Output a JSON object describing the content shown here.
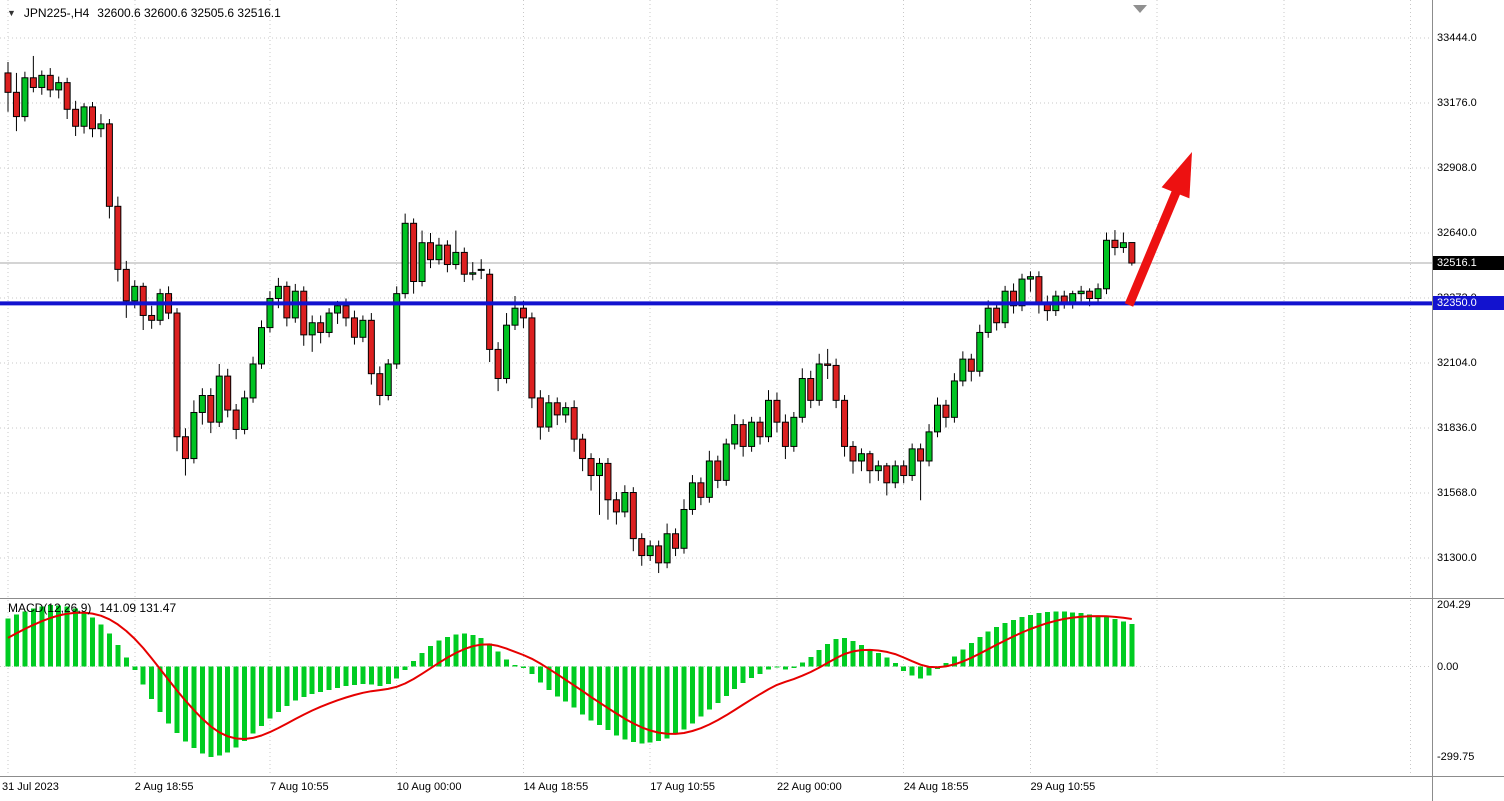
{
  "header": {
    "symbol_period": "JPN225-,H4",
    "ohlc_text": "32600.6 32600.6 32505.6 32516.1"
  },
  "price_axis": {
    "tick_labels": [
      "33444.0",
      "33176.0",
      "32908.0",
      "32640.0",
      "32372.0",
      "32104.0",
      "31836.0",
      "31568.0",
      "31300.0"
    ],
    "current_price_label": "32516.1",
    "hline_label": "32350.0"
  },
  "macd_panel": {
    "label": "MACD(12,26,9)",
    "values_text": "141.09 131.47",
    "tick_labels": [
      "204.29",
      "0.00",
      "-299.75"
    ]
  },
  "time_axis": {
    "labels": [
      "31 Jul 2023",
      "2 Aug 18:55",
      "7 Aug 10:55",
      "10 Aug 00:00",
      "14 Aug 18:55",
      "17 Aug 10:55",
      "22 Aug 00:00",
      "24 Aug 18:55",
      "29 Aug 10:55"
    ],
    "candle_indices": [
      0,
      15,
      31,
      46,
      61,
      76,
      91,
      106,
      121
    ]
  },
  "colors": {
    "bull": "#00C322",
    "bear": "#DC2020",
    "wick": "#000000",
    "macd_hist": "#00CC22",
    "macd_signal": "#E60000",
    "hline": "#1212CF",
    "arrow": "#ED1111",
    "grid": "#C8C8C8",
    "separator": "#8C8C8C",
    "current_line": "#A8A8A8",
    "shift_marker": "#909090"
  },
  "chart_data": {
    "type": "candlestick",
    "symbol": "JPN225-",
    "timeframe": "H4",
    "title": "JPN225-,H4 32600.6 32600.6 32505.6 32516.1",
    "price_range_visible": [
      31150,
      33500
    ],
    "horizontal_line": 32350.0,
    "current_price": 32516.1,
    "candles": [
      [
        33300,
        33345,
        33140,
        33220
      ],
      [
        33220,
        33300,
        33060,
        33120
      ],
      [
        33120,
        33305,
        33100,
        33280
      ],
      [
        33280,
        33370,
        33220,
        33240
      ],
      [
        33240,
        33310,
        33210,
        33290
      ],
      [
        33290,
        33320,
        33200,
        33230
      ],
      [
        33230,
        33285,
        33195,
        33260
      ],
      [
        33260,
        33280,
        33110,
        33150
      ],
      [
        33150,
        33185,
        33040,
        33080
      ],
      [
        33080,
        33175,
        33050,
        33160
      ],
      [
        33160,
        33180,
        33035,
        33070
      ],
      [
        33070,
        33130,
        33035,
        33090
      ],
      [
        33090,
        33110,
        32700,
        32750
      ],
      [
        32750,
        32790,
        32440,
        32490
      ],
      [
        32490,
        32525,
        32290,
        32360
      ],
      [
        32360,
        32445,
        32330,
        32420
      ],
      [
        32420,
        32435,
        32240,
        32300
      ],
      [
        32300,
        32340,
        32245,
        32280
      ],
      [
        32280,
        32410,
        32260,
        32390
      ],
      [
        32390,
        32420,
        32285,
        32310
      ],
      [
        32310,
        32330,
        31740,
        31800
      ],
      [
        31800,
        31835,
        31640,
        31710
      ],
      [
        31710,
        31950,
        31690,
        31900
      ],
      [
        31900,
        32000,
        31850,
        31970
      ],
      [
        31970,
        32000,
        31815,
        31860
      ],
      [
        31860,
        32100,
        31840,
        32050
      ],
      [
        32050,
        32080,
        31880,
        31910
      ],
      [
        31910,
        31935,
        31790,
        31830
      ],
      [
        31830,
        31990,
        31810,
        31960
      ],
      [
        31960,
        32130,
        31940,
        32100
      ],
      [
        32100,
        32280,
        32080,
        32250
      ],
      [
        32250,
        32400,
        32230,
        32370
      ],
      [
        32370,
        32455,
        32330,
        32420
      ],
      [
        32420,
        32440,
        32255,
        32290
      ],
      [
        32290,
        32430,
        32270,
        32400
      ],
      [
        32400,
        32420,
        32175,
        32220
      ],
      [
        32220,
        32300,
        32150,
        32270
      ],
      [
        32270,
        32300,
        32185,
        32230
      ],
      [
        32230,
        32330,
        32210,
        32310
      ],
      [
        32310,
        32360,
        32265,
        32340
      ],
      [
        32340,
        32370,
        32255,
        32290
      ],
      [
        32290,
        32320,
        32180,
        32210
      ],
      [
        32210,
        32300,
        32190,
        32280
      ],
      [
        32280,
        32310,
        32015,
        32060
      ],
      [
        32060,
        32090,
        31930,
        31970
      ],
      [
        31970,
        32120,
        31950,
        32100
      ],
      [
        32100,
        32420,
        32080,
        32390
      ],
      [
        32390,
        32720,
        32370,
        32680
      ],
      [
        32680,
        32700,
        32390,
        32440
      ],
      [
        32440,
        32650,
        32420,
        32600
      ],
      [
        32600,
        32640,
        32495,
        32530
      ],
      [
        32530,
        32620,
        32510,
        32590
      ],
      [
        32590,
        32610,
        32478,
        32510
      ],
      [
        32510,
        32650,
        32490,
        32560
      ],
      [
        32560,
        32580,
        32438,
        32470
      ],
      [
        32470,
        32520,
        32445,
        32476
      ],
      [
        32490,
        32532,
        32450,
        32486
      ],
      [
        32470,
        32492,
        32108,
        32160
      ],
      [
        32160,
        32190,
        31988,
        32040
      ],
      [
        32040,
        32310,
        32020,
        32260
      ],
      [
        32260,
        32380,
        32240,
        32330
      ],
      [
        32330,
        32360,
        32248,
        32290
      ],
      [
        32290,
        32312,
        31918,
        31960
      ],
      [
        31960,
        31992,
        31788,
        31840
      ],
      [
        31840,
        31972,
        31820,
        31940
      ],
      [
        31940,
        31962,
        31848,
        31890
      ],
      [
        31890,
        31942,
        31858,
        31920
      ],
      [
        31920,
        31950,
        31738,
        31790
      ],
      [
        31790,
        31812,
        31658,
        31710
      ],
      [
        31710,
        31732,
        31578,
        31640
      ],
      [
        31640,
        31712,
        31478,
        31690
      ],
      [
        31690,
        31712,
        31458,
        31540
      ],
      [
        31540,
        31572,
        31438,
        31490
      ],
      [
        31490,
        31600,
        31468,
        31570
      ],
      [
        31570,
        31592,
        31328,
        31380
      ],
      [
        31380,
        31402,
        31268,
        31310
      ],
      [
        31310,
        31372,
        31288,
        31350
      ],
      [
        31350,
        31372,
        31238,
        31280
      ],
      [
        31280,
        31442,
        31258,
        31400
      ],
      [
        31400,
        31422,
        31308,
        31340
      ],
      [
        31340,
        31542,
        31318,
        31500
      ],
      [
        31500,
        31642,
        31478,
        31610
      ],
      [
        31610,
        31632,
        31518,
        31550
      ],
      [
        31550,
        31742,
        31528,
        31700
      ],
      [
        31700,
        31722,
        31588,
        31620
      ],
      [
        31620,
        31792,
        31598,
        31770
      ],
      [
        31770,
        31892,
        31748,
        31850
      ],
      [
        31850,
        31872,
        31718,
        31760
      ],
      [
        31760,
        31882,
        31738,
        31860
      ],
      [
        31860,
        31882,
        31768,
        31800
      ],
      [
        31800,
        31992,
        31778,
        31950
      ],
      [
        31950,
        31982,
        31818,
        31860
      ],
      [
        31860,
        31892,
        31708,
        31760
      ],
      [
        31760,
        31902,
        31738,
        31880
      ],
      [
        31880,
        32082,
        31858,
        32040
      ],
      [
        32040,
        32072,
        31918,
        31950
      ],
      [
        31950,
        32142,
        31928,
        32100
      ],
      [
        32100,
        32162,
        32038,
        32094
      ],
      [
        32094,
        32122,
        31918,
        31950
      ],
      [
        31950,
        31972,
        31718,
        31760
      ],
      [
        31760,
        31782,
        31648,
        31700
      ],
      [
        31700,
        31752,
        31658,
        31730
      ],
      [
        31730,
        31742,
        31608,
        31660
      ],
      [
        31660,
        31702,
        31618,
        31680
      ],
      [
        31680,
        31692,
        31558,
        31610
      ],
      [
        31610,
        31702,
        31588,
        31680
      ],
      [
        31680,
        31702,
        31608,
        31640
      ],
      [
        31640,
        31772,
        31618,
        31750
      ],
      [
        31750,
        31772,
        31538,
        31700
      ],
      [
        31700,
        31852,
        31678,
        31820
      ],
      [
        31820,
        31962,
        31798,
        31930
      ],
      [
        31930,
        31952,
        31838,
        31880
      ],
      [
        31880,
        32062,
        31858,
        32030
      ],
      [
        32030,
        32152,
        32008,
        32120
      ],
      [
        32120,
        32142,
        32028,
        32070
      ],
      [
        32070,
        32262,
        32048,
        32230
      ],
      [
        32230,
        32362,
        32208,
        32330
      ],
      [
        32330,
        32352,
        32238,
        32270
      ],
      [
        32270,
        32422,
        32248,
        32400
      ],
      [
        32400,
        32432,
        32308,
        32340
      ],
      [
        32340,
        32472,
        32318,
        32450
      ],
      [
        32450,
        32482,
        32398,
        32460
      ],
      [
        32460,
        32482,
        32308,
        32350
      ],
      [
        32350,
        32382,
        32278,
        32320
      ],
      [
        32320,
        32402,
        32298,
        32380
      ],
      [
        32380,
        32402,
        32328,
        32350
      ],
      [
        32350,
        32402,
        32328,
        32390
      ],
      [
        32390,
        32422,
        32358,
        32400
      ],
      [
        32400,
        32412,
        32338,
        32370
      ],
      [
        32370,
        32432,
        32348,
        32410
      ],
      [
        32410,
        32642,
        32388,
        32610
      ],
      [
        32610,
        32652,
        32548,
        32580
      ],
      [
        32580,
        32642,
        32558,
        32600
      ],
      [
        32600.6,
        32600.6,
        32505.6,
        32516.1
      ]
    ],
    "macd": {
      "name": "MACD",
      "params": [
        12,
        26,
        9
      ],
      "last_macd": 141.09,
      "last_signal": 131.47,
      "range": [
        -299.75,
        204.29
      ],
      "histogram": [
        160,
        172,
        183,
        192,
        199,
        204.29,
        203,
        199,
        192,
        180,
        163,
        140,
        110,
        72,
        30,
        -12,
        -60,
        -108,
        -150,
        -188,
        -220,
        -248,
        -270,
        -288,
        -299.75,
        -295,
        -284,
        -268,
        -246,
        -222,
        -197,
        -172,
        -150,
        -130,
        -113,
        -100,
        -91,
        -84,
        -78,
        -71,
        -65,
        -61,
        -58,
        -60,
        -64,
        -57,
        -40,
        -12,
        18,
        45,
        68,
        86,
        98,
        107,
        110,
        105,
        94,
        76,
        50,
        24,
        6,
        -4,
        -24,
        -52,
        -78,
        -99,
        -116,
        -136,
        -158,
        -178,
        -194,
        -210,
        -228,
        -242,
        -250,
        -255,
        -252,
        -247,
        -238,
        -225,
        -208,
        -188,
        -166,
        -143,
        -120,
        -97,
        -74,
        -55,
        -38,
        -24,
        -10,
        -3,
        -9,
        -5,
        14,
        32,
        55,
        75,
        92,
        95,
        85,
        72,
        58,
        45,
        30,
        12,
        -15,
        -30,
        -40,
        -30,
        -8,
        12,
        34,
        56,
        78,
        98,
        116,
        131,
        144,
        155,
        164,
        171,
        177,
        181,
        183,
        182,
        180,
        177,
        173,
        169,
        164,
        158,
        150,
        141.09
      ]
    }
  }
}
